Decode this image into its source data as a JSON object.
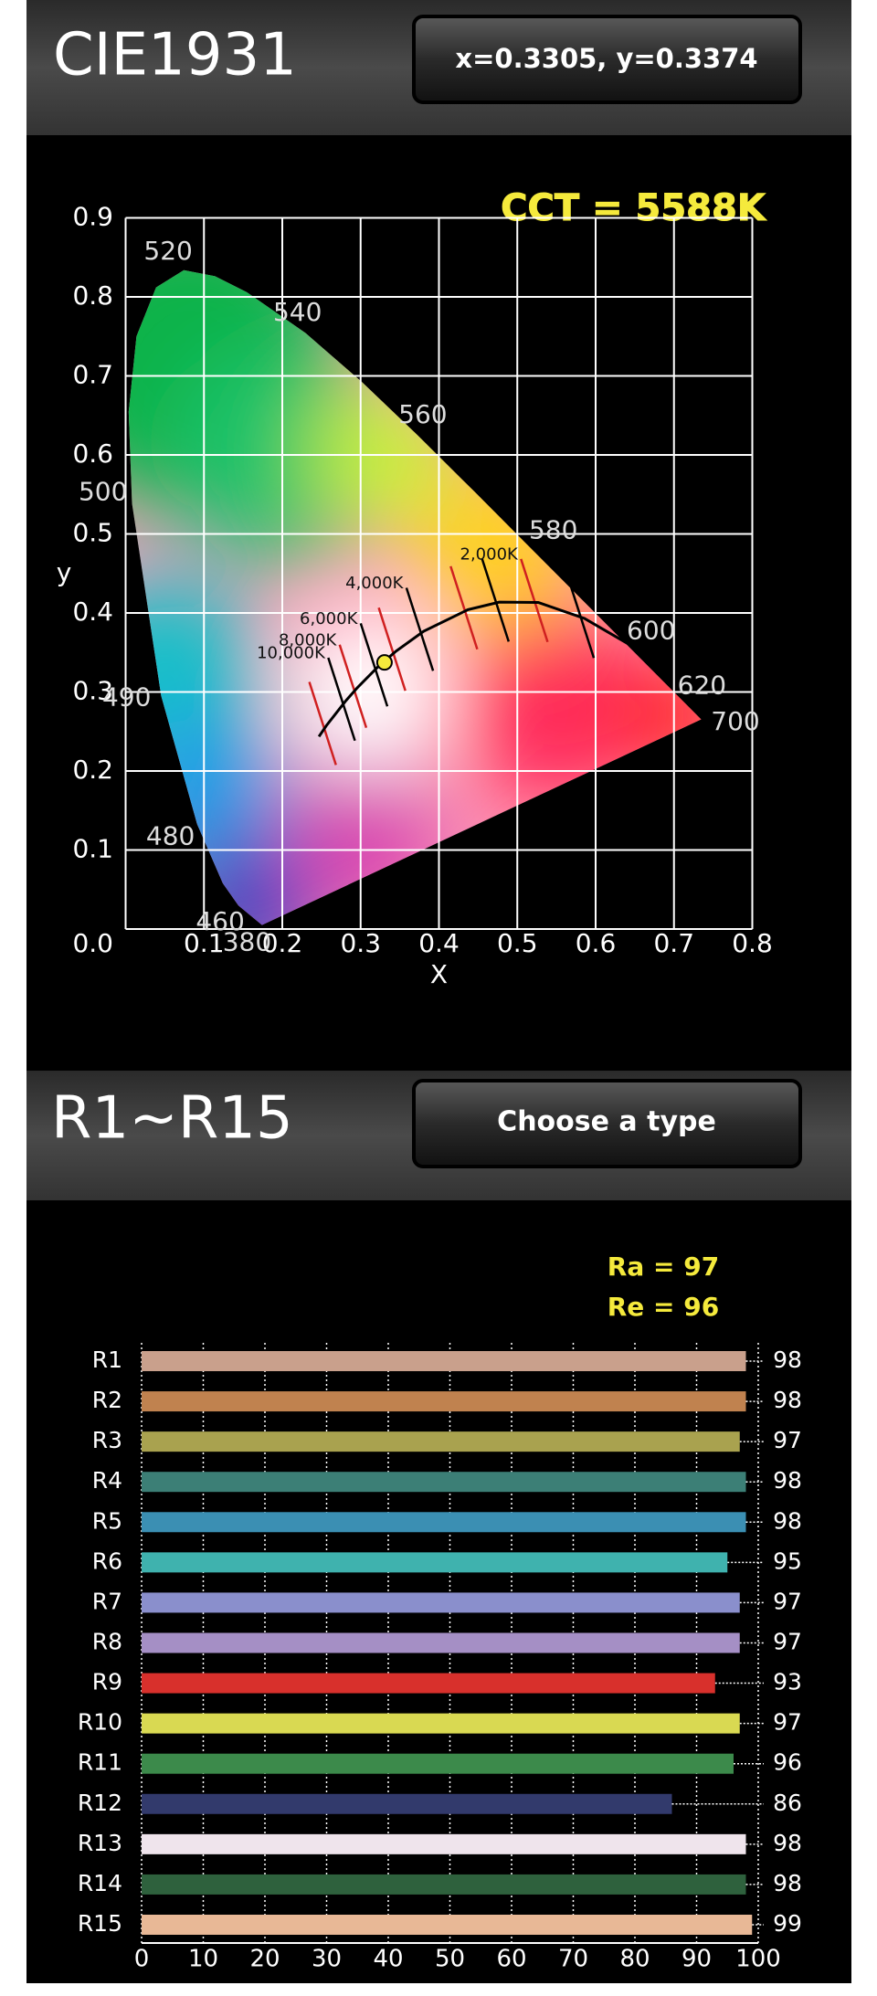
{
  "cie_panel": {
    "title": "CIE1931",
    "button": "x=0.3305, y=0.3374"
  },
  "cri_panel": {
    "title": "R1~R15",
    "button": "Choose a type"
  },
  "chart_data": [
    {
      "type": "chromaticity",
      "annotation": "CCT = 5588K",
      "x_label": "X",
      "y_label": "y",
      "xlim": [
        0,
        0.8
      ],
      "ylim": [
        0,
        0.9
      ],
      "xticks": [
        0.1,
        0.2,
        0.3,
        0.4,
        0.5,
        0.6,
        0.7,
        0.8
      ],
      "yticks": [
        {
          "value": 0,
          "label": "0.0"
        },
        0.1,
        0.2,
        0.3,
        0.4,
        0.5,
        0.6,
        0.7,
        0.8,
        0.9
      ],
      "grid": true,
      "grid_color": "#ffffff",
      "spectral_locus": {
        "x": [
          0.1741,
          0.144,
          0.1241,
          0.0913,
          0.0454,
          0.0082,
          0.0039,
          0.0139,
          0.0389,
          0.0743,
          0.1142,
          0.1547,
          0.2296,
          0.3016,
          0.3731,
          0.4441,
          0.5125,
          0.5752,
          0.627,
          0.6915,
          0.7347
        ],
        "y": [
          0.005,
          0.0297,
          0.0578,
          0.1327,
          0.295,
          0.5384,
          0.6548,
          0.7502,
          0.812,
          0.8338,
          0.8262,
          0.8059,
          0.7543,
          0.6923,
          0.6245,
          0.5547,
          0.4866,
          0.4242,
          0.3725,
          0.3083,
          0.2653
        ]
      },
      "wavelength_labels": [
        {
          "nm": 380,
          "x": 0.1741,
          "y": 0.005
        },
        {
          "nm": 460,
          "x": 0.144,
          "y": 0.0297
        },
        {
          "nm": 480,
          "x": 0.0913,
          "y": 0.1327
        },
        {
          "nm": 490,
          "x": 0.0454,
          "y": 0.295
        },
        {
          "nm": 500,
          "x": 0.0082,
          "y": 0.5384
        },
        {
          "nm": 520,
          "x": 0.0743,
          "y": 0.8338
        },
        {
          "nm": 540,
          "x": 0.2296,
          "y": 0.7543
        },
        {
          "nm": 560,
          "x": 0.3731,
          "y": 0.6245
        },
        {
          "nm": 580,
          "x": 0.5125,
          "y": 0.4866
        },
        {
          "nm": 600,
          "x": 0.627,
          "y": 0.3725
        },
        {
          "nm": 620,
          "x": 0.6915,
          "y": 0.3083
        },
        {
          "nm": 700,
          "x": 0.7347,
          "y": 0.2653
        }
      ],
      "planckian_locus": {
        "x": [
          0.2468,
          0.2565,
          0.2807,
          0.2952,
          0.3221,
          0.3451,
          0.3805,
          0.4369,
          0.477,
          0.5267,
          0.5857,
          0.6528
        ],
        "y": [
          0.2436,
          0.2577,
          0.2884,
          0.3048,
          0.3318,
          0.3516,
          0.3768,
          0.4041,
          0.4137,
          0.4133,
          0.3931,
          0.3544
        ]
      },
      "curve_color": "#000000",
      "cct_labels": [
        {
          "label": "10,000K",
          "x": 0.2807,
          "y": 0.2884
        },
        {
          "label": "8,000K",
          "x": 0.2952,
          "y": 0.3048
        },
        {
          "label": "6,000K",
          "x": 0.3221,
          "y": 0.3318
        },
        {
          "label": "4,000K",
          "x": 0.3805,
          "y": 0.3768
        },
        {
          "label": "2,000K",
          "x": 0.5267,
          "y": 0.4133
        }
      ],
      "point": {
        "x": 0.3305,
        "y": 0.3374
      },
      "point_color": "#f5ea3c"
    },
    {
      "type": "hbar",
      "annotations": [
        "Ra = 97",
        "Re = 96"
      ],
      "categories": [
        "R1",
        "R2",
        "R3",
        "R4",
        "R5",
        "R6",
        "R7",
        "R8",
        "R9",
        "R10",
        "R11",
        "R12",
        "R13",
        "R14",
        "R15"
      ],
      "values": [
        98,
        98,
        97,
        98,
        98,
        95,
        97,
        97,
        93,
        97,
        96,
        86,
        98,
        98,
        99
      ],
      "colors": [
        "#c9a08c",
        "#c0824f",
        "#a9a24f",
        "#3c7f76",
        "#3b8fb3",
        "#3fb2ae",
        "#8a8fcc",
        "#a58fc5",
        "#d8302c",
        "#d9d952",
        "#3c8a4b",
        "#323a6c",
        "#efe4ec",
        "#2e613d",
        "#e8b896"
      ],
      "xlim": [
        0,
        100
      ],
      "xticks": [
        0,
        10,
        20,
        30,
        40,
        50,
        60,
        70,
        80,
        90,
        100
      ],
      "grid": true
    }
  ]
}
